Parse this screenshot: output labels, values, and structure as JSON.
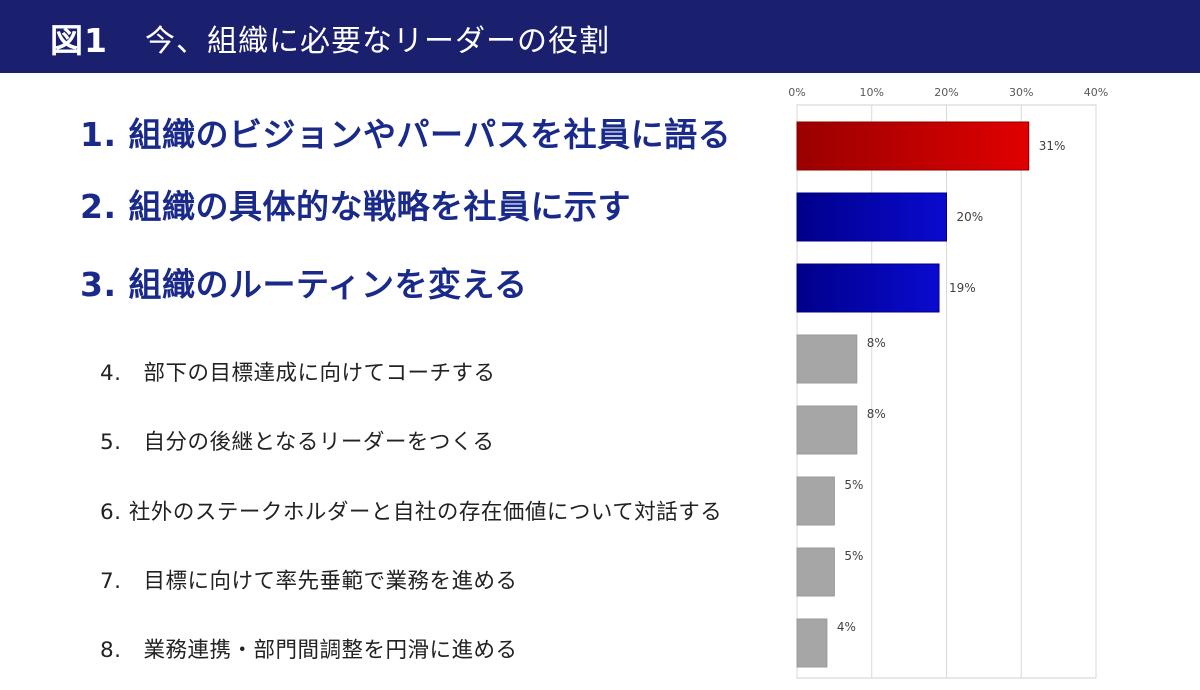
{
  "header": {
    "figure_label": "図1",
    "title": "今、組織に必要なリーダーの役割"
  },
  "colors": {
    "header_bg": "#1a1f6e",
    "top_text": "#1a2a8a",
    "bar_red": "#cc0000",
    "bar_blue": "#0000bb",
    "bar_gray": "#a6a6a6"
  },
  "chart_data": {
    "type": "bar",
    "orientation": "horizontal",
    "categories": [
      "1. 組織のビジョンやパーパスを社員に語る",
      "2. 組織の具体的な戦略を社員に示す",
      "3. 組織のルーティンを変える",
      "4.　部下の目標達成に向けてコーチする",
      "5.　自分の後継となるリーダーをつくる",
      "6. 社外のステークホルダーと自社の存在価値について対話する",
      "7.　目標に向けて率先垂範で業務を進める",
      "8.　業務連携・部門間調整を円滑に進める"
    ],
    "values": [
      31,
      20,
      19,
      8,
      8,
      5,
      5,
      4
    ],
    "value_labels": [
      "31%",
      "20%",
      "19%",
      "8%",
      "8%",
      "5%",
      "5%",
      "4%"
    ],
    "bar_colors": [
      "red",
      "blue",
      "blue",
      "gray",
      "gray",
      "gray",
      "gray",
      "gray"
    ],
    "xlim": [
      0,
      40
    ],
    "xticks": [
      0,
      10,
      20,
      30,
      40
    ],
    "xtick_labels": [
      "0%",
      "10%",
      "20%",
      "30%",
      "40%"
    ],
    "axis_position": "top",
    "grid": true,
    "legend": "none"
  }
}
